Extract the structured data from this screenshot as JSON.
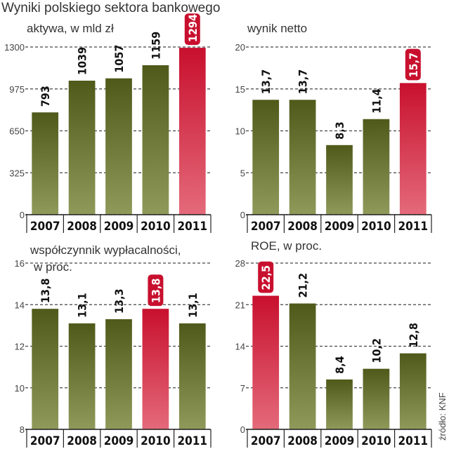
{
  "title": "Wyniki polskiego sektora bankowego",
  "source": "źródło: KNF",
  "colors": {
    "bar_top": "#4f5a1a",
    "bar_bottom": "#8f9a5a",
    "highlight_top": "#c8102e",
    "highlight_bottom": "#e46a7a",
    "grid": "#444444"
  },
  "chart_data": [
    {
      "type": "bar",
      "title": "aktywa, w mld zł",
      "categories": [
        "2007",
        "2008",
        "2009",
        "2010",
        "2011"
      ],
      "values": [
        793,
        1039,
        1057,
        1159,
        1294
      ],
      "value_labels": [
        "793",
        "1039",
        "1057",
        "1159",
        "1294"
      ],
      "yticks": [
        "0",
        "325",
        "650",
        "975",
        "1300"
      ],
      "ylim": [
        0,
        1300
      ],
      "highlight": [
        4
      ]
    },
    {
      "type": "bar",
      "title": "wynik netto",
      "categories": [
        "2007",
        "2008",
        "2009",
        "2010",
        "2011"
      ],
      "values": [
        13.7,
        13.7,
        8.3,
        11.4,
        15.7
      ],
      "value_labels": [
        "13,7",
        "13,7",
        "8,3",
        "11,4",
        "15,7"
      ],
      "yticks": [
        "0",
        "5",
        "10",
        "15",
        "20"
      ],
      "ylim": [
        0,
        20
      ],
      "highlight": [
        4
      ]
    },
    {
      "type": "bar",
      "title": "współczynnik wypłacalności,",
      "title_line2": "w proc.",
      "categories": [
        "2007",
        "2008",
        "2009",
        "2010",
        "2011"
      ],
      "values": [
        13.8,
        13.1,
        13.3,
        13.8,
        13.1
      ],
      "value_labels": [
        "13,8",
        "13,1",
        "13,3",
        "13,8",
        "13,1"
      ],
      "yticks": [
        "8",
        "10",
        "12",
        "14",
        "16"
      ],
      "ylim": [
        8,
        16
      ],
      "highlight": [
        3
      ]
    },
    {
      "type": "bar",
      "title": "ROE, w proc.",
      "categories": [
        "2007",
        "2008",
        "2009",
        "2010",
        "2011"
      ],
      "values": [
        22.5,
        21.2,
        8.4,
        10.2,
        12.8
      ],
      "value_labels": [
        "22,5",
        "21,2",
        "8,4",
        "10,2",
        "12,8"
      ],
      "yticks": [
        "0",
        "7",
        "14",
        "21",
        "28"
      ],
      "ylim": [
        0,
        28
      ],
      "highlight": [
        0
      ]
    }
  ]
}
